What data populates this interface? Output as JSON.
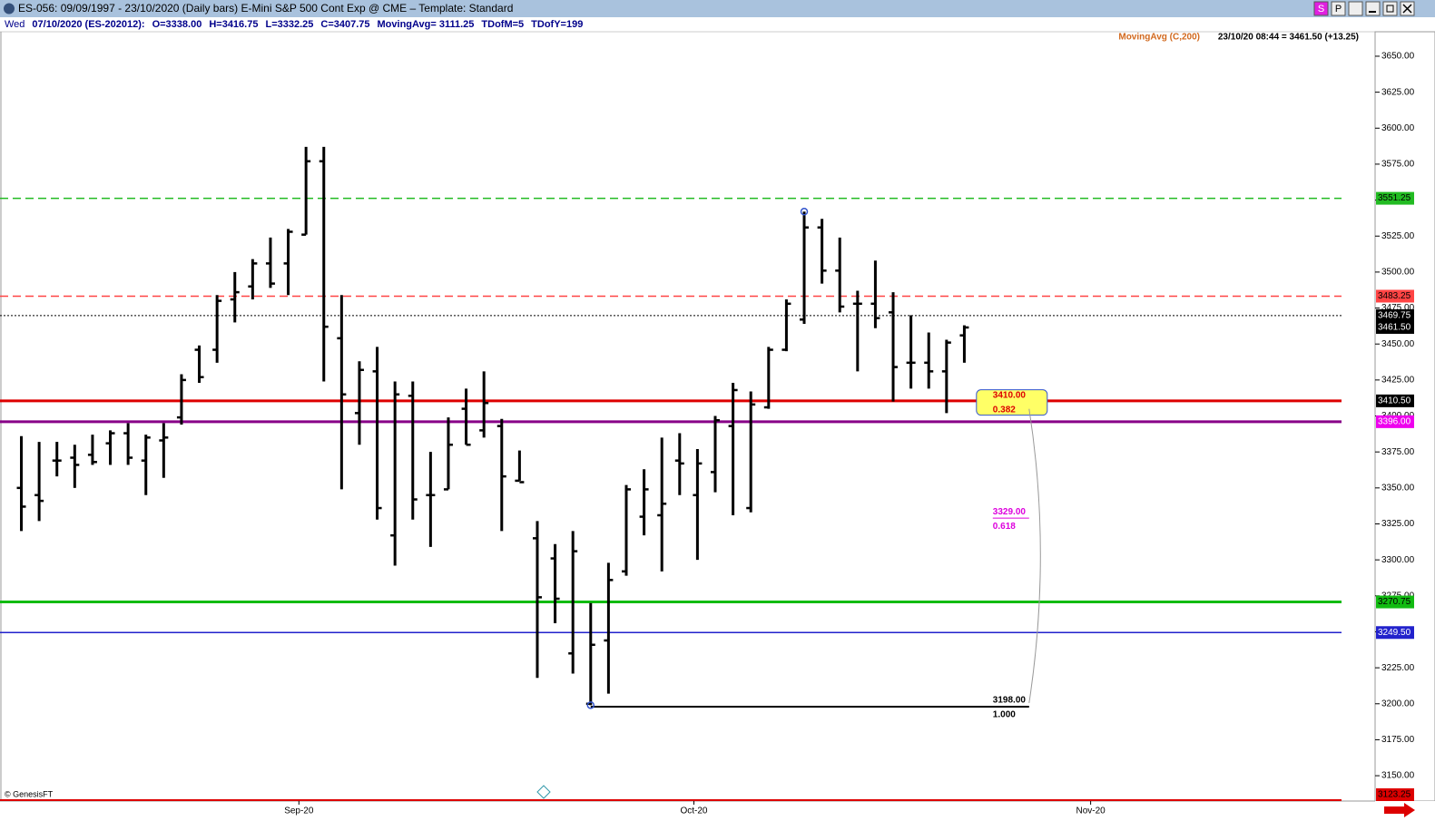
{
  "window": {
    "title": "ES-056:  09/09/1997 - 23/10/2020  (Daily bars)   E-Mini S&P 500 Cont Exp @ CME  –  Template: Standard",
    "buttons": [
      "S",
      "P"
    ]
  },
  "info": {
    "day": "Wed",
    "items": [
      "07/10/2020 (ES-202012):",
      "O=3338.00",
      "H=3416.75",
      "L=3332.25",
      "C=3407.75",
      "MovingAvg= 3111.25",
      "TDofM=5",
      "TDofY=199"
    ],
    "indicator": "MovingAvg (C,200)",
    "quote": "23/10/20 08:44 = 3461.50 (+13.25)",
    "credit": "© GenesisFT"
  },
  "chart_data": {
    "type": "ohlc",
    "categories": [
      null,
      null,
      null,
      null,
      null,
      null,
      null,
      null,
      null,
      null,
      null,
      null,
      null,
      null,
      null,
      null,
      null,
      null,
      null,
      null,
      null,
      null,
      null,
      null,
      null,
      null,
      null,
      null,
      null,
      null,
      null,
      null,
      null,
      null,
      null,
      null,
      null,
      null,
      null,
      null,
      null,
      null,
      null,
      null,
      null,
      null,
      null,
      null,
      null,
      null,
      null,
      null,
      null,
      null
    ],
    "open": [
      3350,
      3345,
      3369,
      3371,
      3373,
      3381,
      3388,
      3369,
      3383,
      3399,
      3446,
      3446,
      3481,
      3490,
      3506,
      3506,
      3526,
      3577,
      3454,
      3402,
      3431,
      3317,
      3414,
      3345,
      3349,
      3405,
      3390,
      3393,
      3355,
      3315,
      3301,
      3235,
      3200,
      3244,
      3292,
      3330,
      3331,
      3369,
      3345,
      3361,
      3393,
      3336,
      3406,
      3446,
      3467,
      3531,
      3501,
      3478,
      3478,
      3472,
      3437,
      3437,
      3431,
      3456
    ],
    "high": [
      3386,
      3382,
      3382,
      3380,
      3387,
      3390,
      3395,
      3387,
      3395,
      3429,
      3449,
      3484,
      3500,
      3509,
      3524,
      3530,
      3587,
      3587,
      3484,
      3438,
      3448,
      3424,
      3424,
      3375,
      3399,
      3419,
      3431,
      3398,
      3376,
      3327,
      3311,
      3320,
      3270,
      3298,
      3352,
      3363,
      3385,
      3388,
      3377,
      3400,
      3423,
      3417,
      3448,
      3481,
      3542,
      3537,
      3524,
      3487,
      3508,
      3486,
      3470,
      3458,
      3453,
      3463
    ],
    "low": [
      3320,
      3327,
      3358,
      3350,
      3366,
      3366,
      3366,
      3345,
      3357,
      3394,
      3423,
      3437,
      3465,
      3481,
      3489,
      3484,
      3526,
      3424,
      3349,
      3380,
      3328,
      3296,
      3328,
      3309,
      3349,
      3380,
      3385,
      3320,
      3355,
      3218,
      3256,
      3221,
      3199,
      3207,
      3289,
      3317,
      3292,
      3345,
      3300,
      3347,
      3331,
      3333,
      3405,
      3445,
      3464,
      3492,
      3472,
      3431,
      3461,
      3410,
      3419,
      3419,
      3402,
      3437
    ],
    "close": [
      3337,
      3341,
      3369,
      3366,
      3368,
      3388,
      3371,
      3385,
      3385,
      3425,
      3427,
      3480,
      3486,
      3506,
      3492,
      3528,
      3577,
      3462,
      3415,
      3432,
      3336,
      3415,
      3342,
      3345,
      3380,
      3380,
      3409,
      3358,
      3354,
      3274,
      3273,
      3306,
      3241,
      3286,
      3349,
      3349,
      3339,
      3367,
      3367,
      3397,
      3418,
      3408,
      3446,
      3478,
      3531,
      3501,
      3476,
      3478,
      3468,
      3434,
      3437,
      3431,
      3451,
      3461.5
    ],
    "color": "#000000",
    "xlim": [
      -1.2,
      74.2
    ],
    "xticks": [
      {
        "value": 15.6,
        "label": "Sep-20"
      },
      {
        "value": 37.8,
        "label": "Oct-20"
      },
      {
        "value": 60.1,
        "label": "Nov-20"
      }
    ],
    "ylim": [
      3132.4,
      3667
    ],
    "yticks": [
      {
        "value": 3150,
        "label": "3150.00"
      },
      {
        "value": 3175,
        "label": "3175.00"
      },
      {
        "value": 3200,
        "label": "3200.00"
      },
      {
        "value": 3225,
        "label": "3225.00"
      },
      {
        "value": 3250,
        "label": "3250.00"
      },
      {
        "value": 3275,
        "label": "3275.00"
      },
      {
        "value": 3300,
        "label": "3300.00"
      },
      {
        "value": 3325,
        "label": "3325.00"
      },
      {
        "value": 3350,
        "label": "3350.00"
      },
      {
        "value": 3375,
        "label": "3375.00"
      },
      {
        "value": 3400,
        "label": "3400.00"
      },
      {
        "value": 3425,
        "label": "3425.00"
      },
      {
        "value": 3450,
        "label": "3450.00"
      },
      {
        "value": 3475,
        "label": "3475.00"
      },
      {
        "value": 3500,
        "label": "3500.00"
      },
      {
        "value": 3525,
        "label": "3525.00"
      },
      {
        "value": 3550,
        "label": "3550.00"
      },
      {
        "value": 3575,
        "label": "3575.00"
      },
      {
        "value": 3600,
        "label": "3600.00"
      },
      {
        "value": 3625,
        "label": "3625.00"
      },
      {
        "value": 3650,
        "label": "3650.00"
      }
    ],
    "levels": [
      {
        "value": 3551.25,
        "label": "3551.25",
        "color": "#22bb22",
        "style": "dashed",
        "width": 1.5,
        "text_color": "#000000"
      },
      {
        "value": 3483.25,
        "label": "3483.25",
        "color": "#ff4444",
        "style": "dashed",
        "width": 1.5,
        "text_color": "#000000"
      },
      {
        "value": 3469.75,
        "label": "3469.75",
        "color": "#000000",
        "style": "dotted",
        "width": 1,
        "text_color": "#ffffff"
      },
      {
        "value": 3410.5,
        "label": "3410.50",
        "color": "#dd0000",
        "style": "solid",
        "width": 3,
        "text_color": "#ffffff",
        "box": "#000000"
      },
      {
        "value": 3396,
        "label": "3396.00",
        "color": "#880088",
        "style": "solid",
        "width": 3,
        "text_color": "#ffffff",
        "box": "#ee00ee"
      },
      {
        "value": 3270.75,
        "label": "3270.75",
        "color": "#11bb11",
        "style": "solid",
        "width": 3,
        "text_color": "#000000"
      },
      {
        "value": 3249.5,
        "label": "3249.50",
        "color": "#2222cc",
        "style": "solid",
        "width": 1.5,
        "text_color": "#ffffff"
      },
      {
        "value": 3123.25,
        "label": "3123.25",
        "color": "#dd0000",
        "style": "solid",
        "width": 2,
        "text_color": "#000000"
      }
    ],
    "last_price": {
      "value": 3461.5,
      "label": "3461.50"
    },
    "fib": {
      "values": [
        3410,
        3329,
        3198
      ],
      "value_labels": [
        "3410.00",
        "3329.00",
        "3198.00"
      ],
      "ratios": [
        0.382,
        0.618,
        1
      ],
      "ratio_labels": [
        "0.382",
        "0.618",
        "1.000"
      ],
      "colors": [
        "#dd0000",
        "#dd00dd",
        "#000000"
      ]
    }
  }
}
